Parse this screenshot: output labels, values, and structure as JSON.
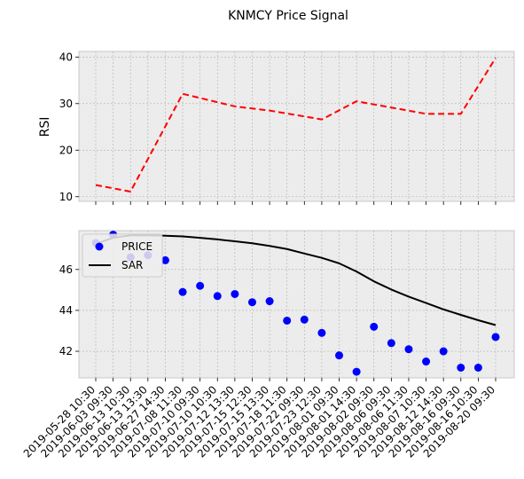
{
  "chart_data": {
    "title": "KNMCY Price Signal",
    "x": [
      "2019-05-28 10:30",
      "2019-06-03 09:30",
      "2019-06-13 10:30",
      "2019-06-13 13:30",
      "2019-06-27 14:30",
      "2019-07-08 11:30",
      "2019-07-10 09:30",
      "2019-07-10 10:30",
      "2019-07-12 13:30",
      "2019-07-15 12:30",
      "2019-07-15 13:30",
      "2019-07-18 11:30",
      "2019-07-22 09:30",
      "2019-07-23 12:30",
      "2019-08-01 09:30",
      "2019-08-01 14:30",
      "2019-08-02 09:30",
      "2019-08-06 09:30",
      "2019-08-06 11:30",
      "2019-08-07 10:30",
      "2019-08-12 14:30",
      "2019-08-16 09:30",
      "2019-08-16 10:30",
      "2019-08-20 09:30"
    ],
    "panels": [
      {
        "type": "line",
        "ylabel": "RSI",
        "ylim": [
          9,
          41.2
        ],
        "yticks": [
          10,
          20,
          30,
          40
        ],
        "grid": true,
        "series": [
          {
            "name": "",
            "style": "dashed",
            "color": "#ff0000",
            "x_index": [
              0,
              2,
              5,
              8,
              10,
              13,
              15,
              19,
              21,
              23
            ],
            "values": [
              12.5,
              11.1,
              32.1,
              29.4,
              28.5,
              26.6,
              30.5,
              27.8,
              27.8,
              39.8
            ]
          }
        ]
      },
      {
        "type": "scatter+line",
        "ylabel": "",
        "ylim": [
          40.7,
          47.9
        ],
        "yticks": [
          42,
          44,
          46
        ],
        "grid": true,
        "legend": "upper left",
        "series": [
          {
            "name": "PRICE",
            "type": "scatter",
            "color": "#0000ff",
            "values": [
              47.3,
              47.7,
              46.6,
              46.7,
              46.45,
              44.9,
              45.2,
              44.7,
              44.8,
              44.4,
              44.45,
              43.5,
              43.55,
              42.9,
              41.8,
              41.0,
              43.2,
              42.4,
              42.1,
              41.5,
              42.0,
              41.2,
              41.2,
              42.7
            ]
          },
          {
            "name": "SAR",
            "type": "line",
            "color": "#000000",
            "values": [
              47.25,
              47.55,
              47.67,
              47.67,
              47.65,
              47.62,
              47.55,
              47.47,
              47.38,
              47.28,
              47.15,
              47.0,
              46.78,
              46.57,
              46.3,
              45.9,
              45.42,
              45.02,
              44.67,
              44.36,
              44.05,
              43.78,
              43.52,
              43.28
            ]
          }
        ]
      }
    ]
  }
}
